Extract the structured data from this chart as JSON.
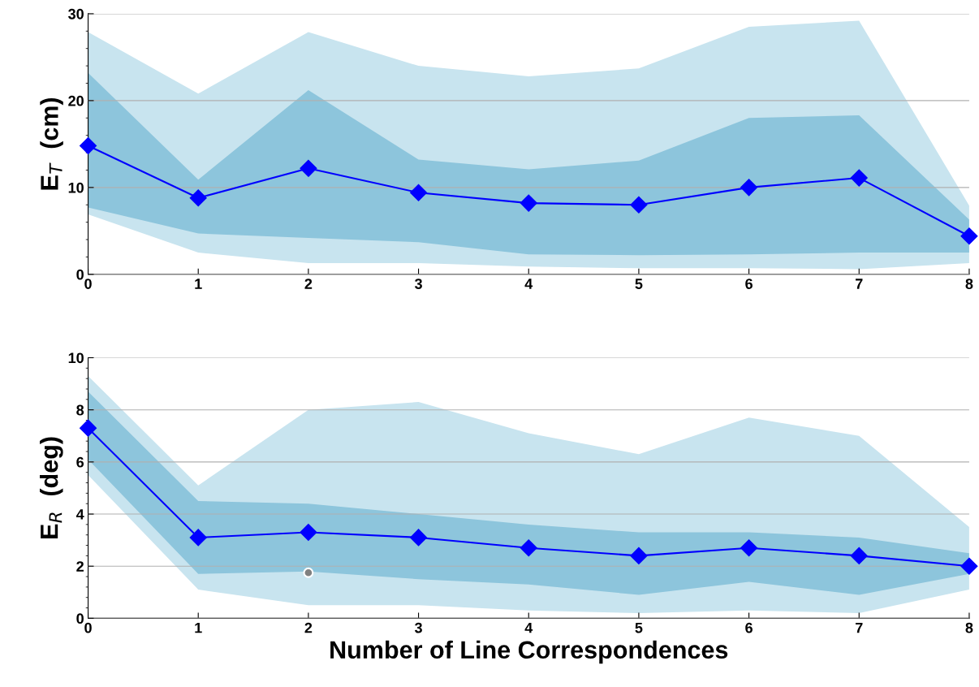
{
  "chart_data": [
    {
      "type": "line",
      "ylabel": "E$_{T}$  (cm)",
      "x": [
        0,
        1,
        2,
        3,
        4,
        5,
        6,
        7,
        8
      ],
      "xlim": [
        0,
        8
      ],
      "xticks": [
        0,
        1,
        2,
        3,
        4,
        5,
        6,
        7,
        8
      ],
      "ylim": [
        0,
        30
      ],
      "yticks": [
        0,
        10,
        20,
        30
      ],
      "grid": "y",
      "legend": false,
      "series": [
        {
          "color": "#c8e4ef",
          "values": [
            null,
            null,
            null,
            null,
            null,
            null,
            null,
            null,
            null
          ],
          "upper": [
            27.9,
            20.8,
            27.9,
            24.0,
            22.8,
            23.7,
            28.5,
            29.2,
            7.9
          ],
          "lower": [
            6.9,
            2.5,
            1.3,
            1.3,
            0.9,
            0.7,
            0.7,
            0.6,
            1.3
          ]
        },
        {
          "color": "#8dc5dc",
          "values": [
            null,
            null,
            null,
            null,
            null,
            null,
            null,
            null,
            null
          ],
          "upper": [
            23.2,
            10.9,
            21.2,
            13.2,
            12.1,
            13.1,
            18.0,
            18.3,
            6.3
          ],
          "lower": [
            7.7,
            4.7,
            4.2,
            3.7,
            2.3,
            2.2,
            2.3,
            2.5,
            2.5
          ]
        },
        {
          "color": "#0000ff",
          "marker": "diamond",
          "values": [
            14.8,
            8.8,
            12.2,
            9.4,
            8.2,
            8.0,
            10.0,
            11.1,
            4.4
          ]
        }
      ]
    },
    {
      "type": "line",
      "ylabel": "E$_{R}$  (deg)",
      "xlabel": "Number of Line Correspondences",
      "x": [
        0,
        1,
        2,
        3,
        4,
        5,
        6,
        7,
        8
      ],
      "xlim": [
        0,
        8
      ],
      "xticks": [
        0,
        1,
        2,
        3,
        4,
        5,
        6,
        7,
        8
      ],
      "ylim": [
        0,
        10
      ],
      "yticks": [
        0,
        2,
        4,
        6,
        8,
        10
      ],
      "grid": "y",
      "legend": false,
      "series": [
        {
          "color": "#c8e4ef",
          "values": [
            null,
            null,
            null,
            null,
            null,
            null,
            null,
            null,
            null
          ],
          "upper": [
            9.3,
            5.1,
            8.0,
            8.3,
            7.1,
            6.3,
            7.7,
            7.0,
            3.5
          ],
          "lower": [
            5.5,
            1.1,
            0.5,
            0.5,
            0.3,
            0.2,
            0.3,
            0.2,
            1.1
          ]
        },
        {
          "color": "#8dc5dc",
          "values": [
            null,
            null,
            null,
            null,
            null,
            null,
            null,
            null,
            null
          ],
          "upper": [
            8.7,
            4.5,
            4.4,
            4.0,
            3.6,
            3.3,
            3.3,
            3.1,
            2.5
          ],
          "lower": [
            6.1,
            1.7,
            1.8,
            1.5,
            1.3,
            0.9,
            1.4,
            0.9,
            1.7
          ]
        },
        {
          "color": "#0000ff",
          "marker": "diamond",
          "values": [
            7.3,
            3.1,
            3.3,
            3.1,
            2.7,
            2.4,
            2.7,
            2.4,
            2.0
          ]
        },
        {
          "type": "scatter",
          "color": "#808080",
          "marker": "circle",
          "x": [
            2
          ],
          "values": [
            1.75
          ]
        }
      ]
    }
  ]
}
